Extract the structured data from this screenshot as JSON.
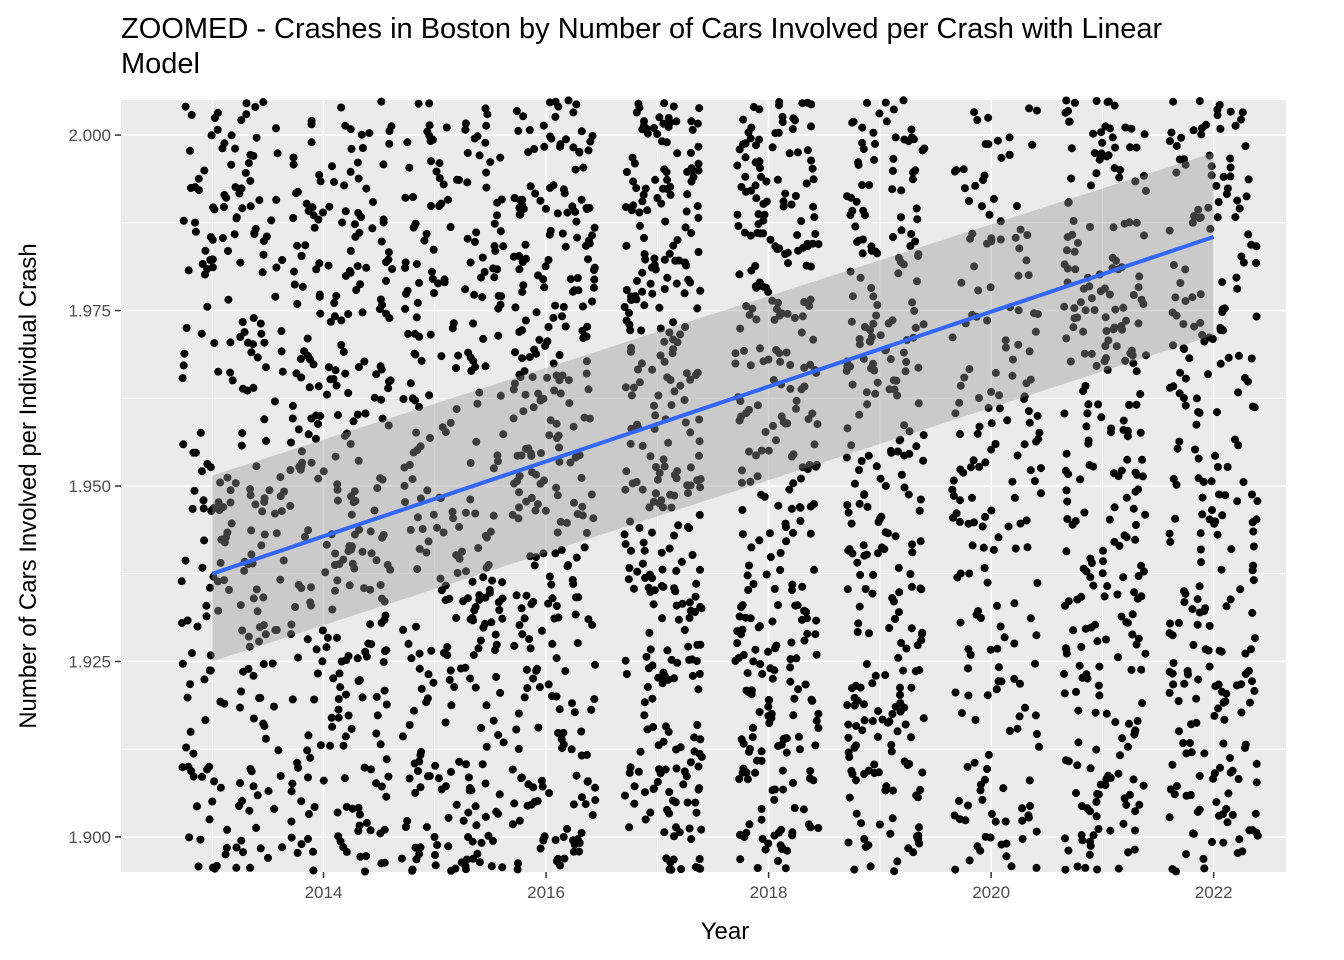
{
  "chart_data": {
    "type": "scatter",
    "title": "ZOOMED - Crashes in Boston by Number of Cars Involved per Crash with Linear Model",
    "xlabel": "Year",
    "ylabel": "Number of Cars Involved per Individual Crash",
    "xlim": [
      2012.18,
      2022.65
    ],
    "ylim": [
      1.895,
      2.005
    ],
    "x_ticks": [
      2014,
      2016,
      2018,
      2020,
      2022
    ],
    "x_tick_labels": [
      "2014",
      "2016",
      "2018",
      "2020",
      "2022"
    ],
    "y_ticks": [
      1.9,
      1.925,
      1.95,
      1.975,
      2.0
    ],
    "y_tick_labels": [
      "1.900",
      "1.925",
      "1.950",
      "1.975",
      "2.000"
    ],
    "grid": true,
    "legend": "none",
    "point_clusters": [
      {
        "x_min": 2012.72,
        "x_max": 2013.65,
        "points": 260
      },
      {
        "x_min": 2013.7,
        "x_max": 2014.62,
        "points": 300
      },
      {
        "x_min": 2014.7,
        "x_max": 2015.62,
        "points": 300
      },
      {
        "x_min": 2015.7,
        "x_max": 2016.45,
        "points": 300
      },
      {
        "x_min": 2016.7,
        "x_max": 2017.4,
        "points": 330
      },
      {
        "x_min": 2017.7,
        "x_max": 2018.45,
        "points": 330
      },
      {
        "x_min": 2018.7,
        "x_max": 2019.4,
        "points": 280
      },
      {
        "x_min": 2019.65,
        "x_max": 2020.45,
        "points": 200
      },
      {
        "x_min": 2020.65,
        "x_max": 2021.4,
        "points": 280
      },
      {
        "x_min": 2021.6,
        "x_max": 2022.4,
        "points": 260
      }
    ],
    "linear_model": {
      "x": [
        2013.0,
        2022.0
      ],
      "y": [
        1.9375,
        1.9855
      ],
      "ci_lower": [
        1.925,
        1.9715
      ],
      "ci_upper": [
        1.9515,
        1.9975
      ],
      "line_color": "#3366FF",
      "ribbon_color": "#999999"
    },
    "colors": {
      "panel_background": "#EBEBEB",
      "gridline": "#FFFFFF",
      "point": "#000000"
    }
  }
}
